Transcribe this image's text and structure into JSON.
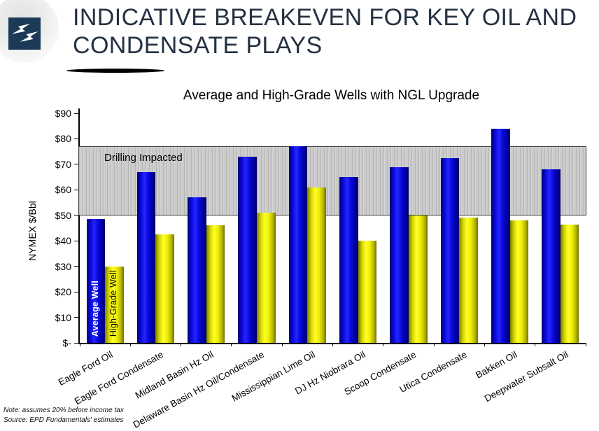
{
  "header": {
    "logo_icon": "double-lightning-bolt",
    "title_line1": "INDICATIVE BREAKEVEN FOR KEY OIL AND",
    "title_line2": "CONDENSATE PLAYS"
  },
  "chart_data": {
    "type": "bar",
    "title": "Average and High-Grade Wells with NGL Upgrade",
    "xlabel": "",
    "ylabel": "NYMEX $/Bbl",
    "ylim": [
      0,
      90
    ],
    "grid": false,
    "legend_position": "labels-inside-first-bars",
    "yticks": [
      {
        "value": 0,
        "label": "$-"
      },
      {
        "value": 10,
        "label": "$10"
      },
      {
        "value": 20,
        "label": "$20"
      },
      {
        "value": 30,
        "label": "$30"
      },
      {
        "value": 40,
        "label": "$40"
      },
      {
        "value": 50,
        "label": "$50"
      },
      {
        "value": 60,
        "label": "$60"
      },
      {
        "value": 70,
        "label": "$70"
      },
      {
        "value": 80,
        "label": "$80"
      },
      {
        "value": 90,
        "label": "$90"
      }
    ],
    "categories": [
      "Eagle Ford Oil",
      "Eagle Ford Condensate",
      "Midland Basin Hz Oil",
      "Delaware Basin Hz Oil/Condensate",
      "Mississippian Lime Oil",
      "DJ Hz Niobrara Oil",
      "Scoop Condensate",
      "Utica Condensate",
      "Bakken Oil",
      "Deepwater Subsalt Oil"
    ],
    "series": [
      {
        "name": "Average Well",
        "color": "#0a0ae0",
        "values": [
          48.5,
          67,
          57,
          73,
          77,
          65,
          69,
          72.5,
          84,
          68
        ]
      },
      {
        "name": "High-Grade Well",
        "color": "#f0f000",
        "values": [
          30,
          42.5,
          46,
          51,
          61,
          40,
          50,
          49,
          48,
          46.5
        ]
      }
    ],
    "annotation_band": {
      "label": "Drilling Impacted",
      "from": 50,
      "to": 76.5,
      "color": "#cbcbcb"
    }
  },
  "footnotes": {
    "note": "Note:  assumes 20% before income tax",
    "source": "Source:  EPD Fundamentals' estimates"
  }
}
